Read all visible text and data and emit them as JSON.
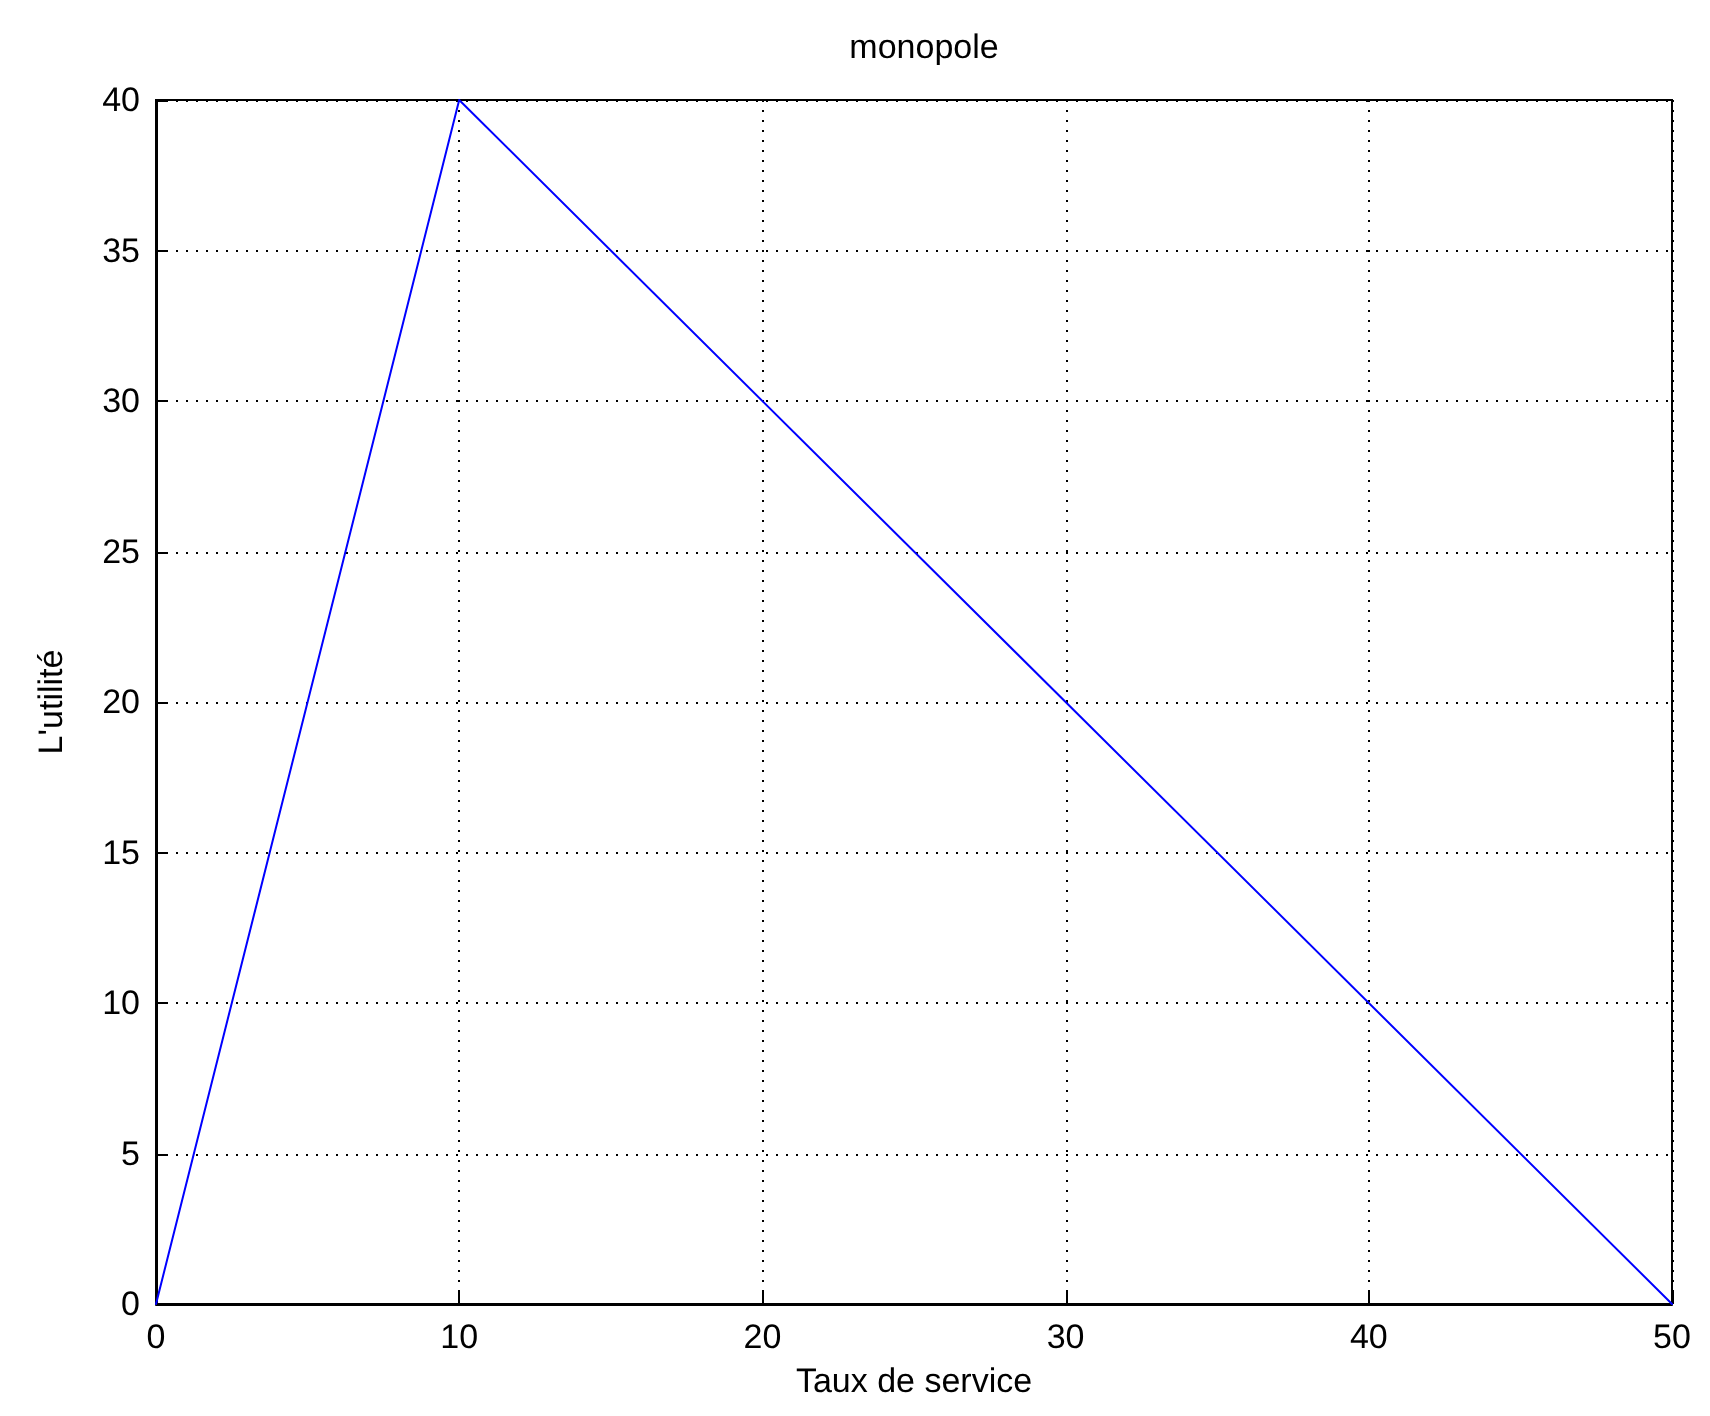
{
  "chart_data": {
    "type": "line",
    "title": "monopole",
    "xlabel": "Taux de service",
    "ylabel": "L'utilité",
    "x": [
      0,
      10,
      50
    ],
    "series": [
      {
        "color": "#0000ff",
        "values": [
          0,
          40,
          0
        ]
      }
    ],
    "xlim": [
      0,
      50
    ],
    "xticks": [
      0,
      10,
      20,
      30,
      40,
      50
    ],
    "ylim": [
      0,
      40
    ],
    "yticks": [
      0,
      5,
      10,
      15,
      20,
      25,
      30,
      35,
      40
    ],
    "grid": true,
    "marker": "none",
    "line_style": "solid"
  }
}
